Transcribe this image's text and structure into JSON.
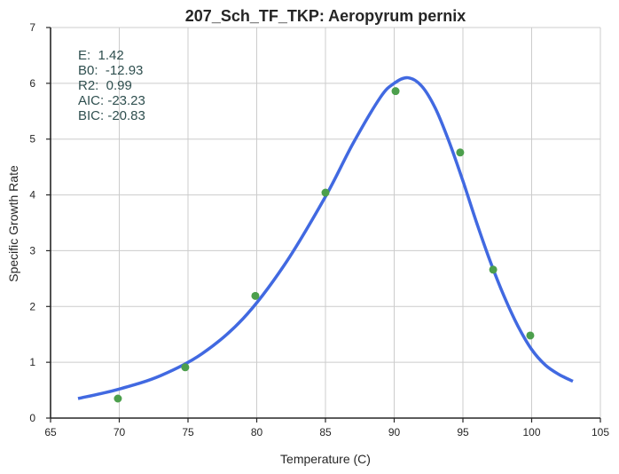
{
  "chart_data": {
    "type": "scatter",
    "title": "207_Sch_TF_TKP: Aeropyrum pernix",
    "xlabel": "Temperature (C)",
    "ylabel": "Specific Growth Rate",
    "xlim": [
      65,
      105
    ],
    "ylim": [
      0,
      7
    ],
    "xticks": [
      65,
      70,
      75,
      80,
      85,
      90,
      95,
      100,
      105
    ],
    "yticks": [
      0,
      1,
      2,
      3,
      4,
      5,
      6,
      7
    ],
    "grid": true,
    "series": [
      {
        "kind": "points",
        "color": "#4c9f4c",
        "x": [
          69.9,
          74.8,
          79.9,
          85.0,
          90.1,
          94.8,
          97.2,
          99.9
        ],
        "y": [
          0.35,
          0.91,
          2.19,
          4.04,
          5.86,
          4.76,
          2.66,
          1.48
        ]
      },
      {
        "kind": "fit",
        "color": "#4169e1",
        "x": [
          67,
          70,
          73,
          76,
          79,
          82,
          85,
          87,
          89,
          90,
          91,
          92,
          93,
          94,
          95,
          96,
          97,
          98,
          99,
          100,
          101,
          102,
          103
        ],
        "y": [
          0.35,
          0.52,
          0.76,
          1.15,
          1.78,
          2.74,
          3.97,
          4.92,
          5.75,
          6.0,
          6.1,
          5.95,
          5.55,
          4.95,
          4.25,
          3.5,
          2.8,
          2.18,
          1.65,
          1.23,
          0.95,
          0.78,
          0.66
        ]
      }
    ],
    "annotations": [
      "E:  1.42",
      "B0:  -12.93",
      "R2:  0.99",
      "AIC: -23.23",
      "BIC: -20.83"
    ],
    "annotation_color": "#2f4f4f"
  }
}
